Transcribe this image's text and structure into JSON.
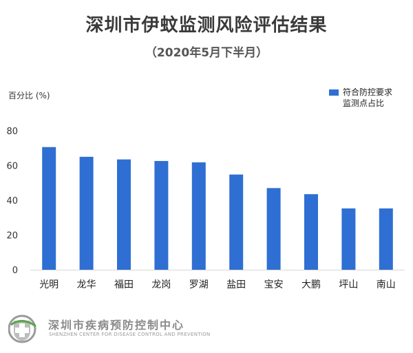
{
  "header": {
    "title": "深圳市伊蚊监测风险评估结果",
    "subtitle": "（2020年5月下半月）"
  },
  "legend": {
    "line1": "符合防控要求",
    "line2": "监测点占比"
  },
  "footer": {
    "org_name": "深圳市疾病预防控制中心",
    "org_name_en": "SHENZHEN CENTER FOR DISEASE CONTROL AND PREVENTION"
  },
  "chart_data": {
    "type": "bar",
    "ylabel": "百分比 (%)",
    "xlabel": "",
    "ylim": [
      0,
      80
    ],
    "yticks": [
      0,
      20,
      40,
      60,
      80
    ],
    "grid": false,
    "legend_position": "top-right",
    "categories": [
      "光明",
      "龙华",
      "福田",
      "龙岗",
      "罗湖",
      "盐田",
      "宝安",
      "大鹏",
      "坪山",
      "南山"
    ],
    "series": [
      {
        "name": "符合防控要求监测点占比",
        "color": "#2f6fd3",
        "values": [
          70.6,
          65.0,
          63.5,
          62.6,
          61.8,
          54.8,
          47.0,
          43.5,
          35.3,
          35.3
        ]
      }
    ]
  }
}
